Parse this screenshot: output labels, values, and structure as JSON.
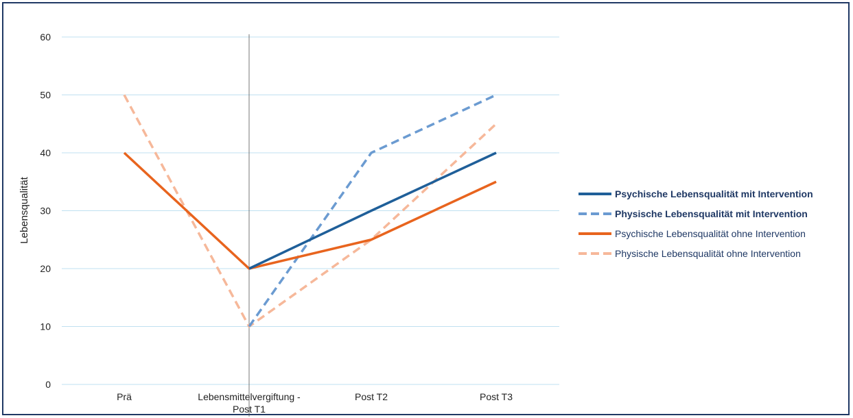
{
  "chart_data": {
    "type": "line",
    "title": "",
    "ylabel": "Lebensqualität",
    "xlabel": "",
    "categories": [
      [
        "Prä"
      ],
      [
        "Lebensmittelvergiftung -",
        "Post T1"
      ],
      [
        "Post T2"
      ],
      [
        "Post T3"
      ]
    ],
    "ylim": [
      0,
      60
    ],
    "yticks": [
      0,
      10,
      20,
      30,
      40,
      50,
      60
    ],
    "grid": true,
    "legend_position": "right",
    "event_marker_category": 1,
    "series": [
      {
        "name": "Psychische Lebensqualität mit Intervention",
        "values": [
          null,
          20,
          30,
          40
        ],
        "color": "#1f5f99",
        "dashed": false,
        "bold": true
      },
      {
        "name": "Physische Lebensqualität mit Intervention",
        "values": [
          null,
          10,
          40,
          50
        ],
        "color": "#6b9bd1",
        "dashed": true,
        "bold": true
      },
      {
        "name": "Psychische Lebensqualität ohne Intervention",
        "values": [
          40,
          20,
          25,
          35
        ],
        "color": "#e8641e",
        "dashed": false,
        "bold": false
      },
      {
        "name": "Physische Lebensqualität ohne Intervention",
        "values": [
          50,
          10,
          25,
          45
        ],
        "color": "#f6b89a",
        "dashed": true,
        "bold": false
      }
    ]
  }
}
